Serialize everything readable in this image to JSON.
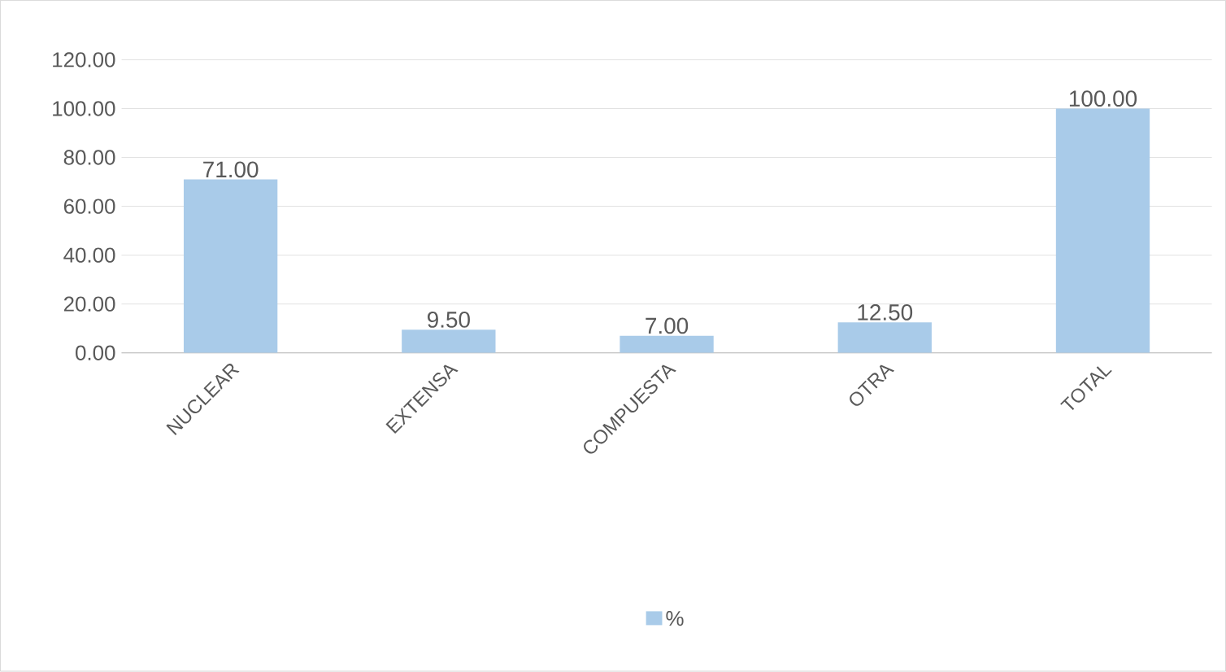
{
  "chart_data": {
    "type": "bar",
    "categories": [
      "NUCLEAR",
      "EXTENSA",
      "COMPUESTA",
      "OTRA",
      "TOTAL"
    ],
    "series": [
      {
        "name": "%",
        "color": "#a9cbe9",
        "values": [
          71,
          9.5,
          7,
          12.5,
          100
        ],
        "value_labels": [
          "71.00",
          "9.50",
          "7.00",
          "12.50",
          "100.00"
        ]
      }
    ],
    "ylim": [
      0,
      120
    ],
    "yticks": [
      {
        "value": 0,
        "label": "0.00"
      },
      {
        "value": 20,
        "label": "20.00"
      },
      {
        "value": 40,
        "label": "40.00"
      },
      {
        "value": 60,
        "label": "60.00"
      },
      {
        "value": 80,
        "label": "80.00"
      },
      {
        "value": 100,
        "label": "100.00"
      },
      {
        "value": 120,
        "label": "120.00"
      }
    ],
    "grid": "y",
    "legend": "bottom"
  }
}
